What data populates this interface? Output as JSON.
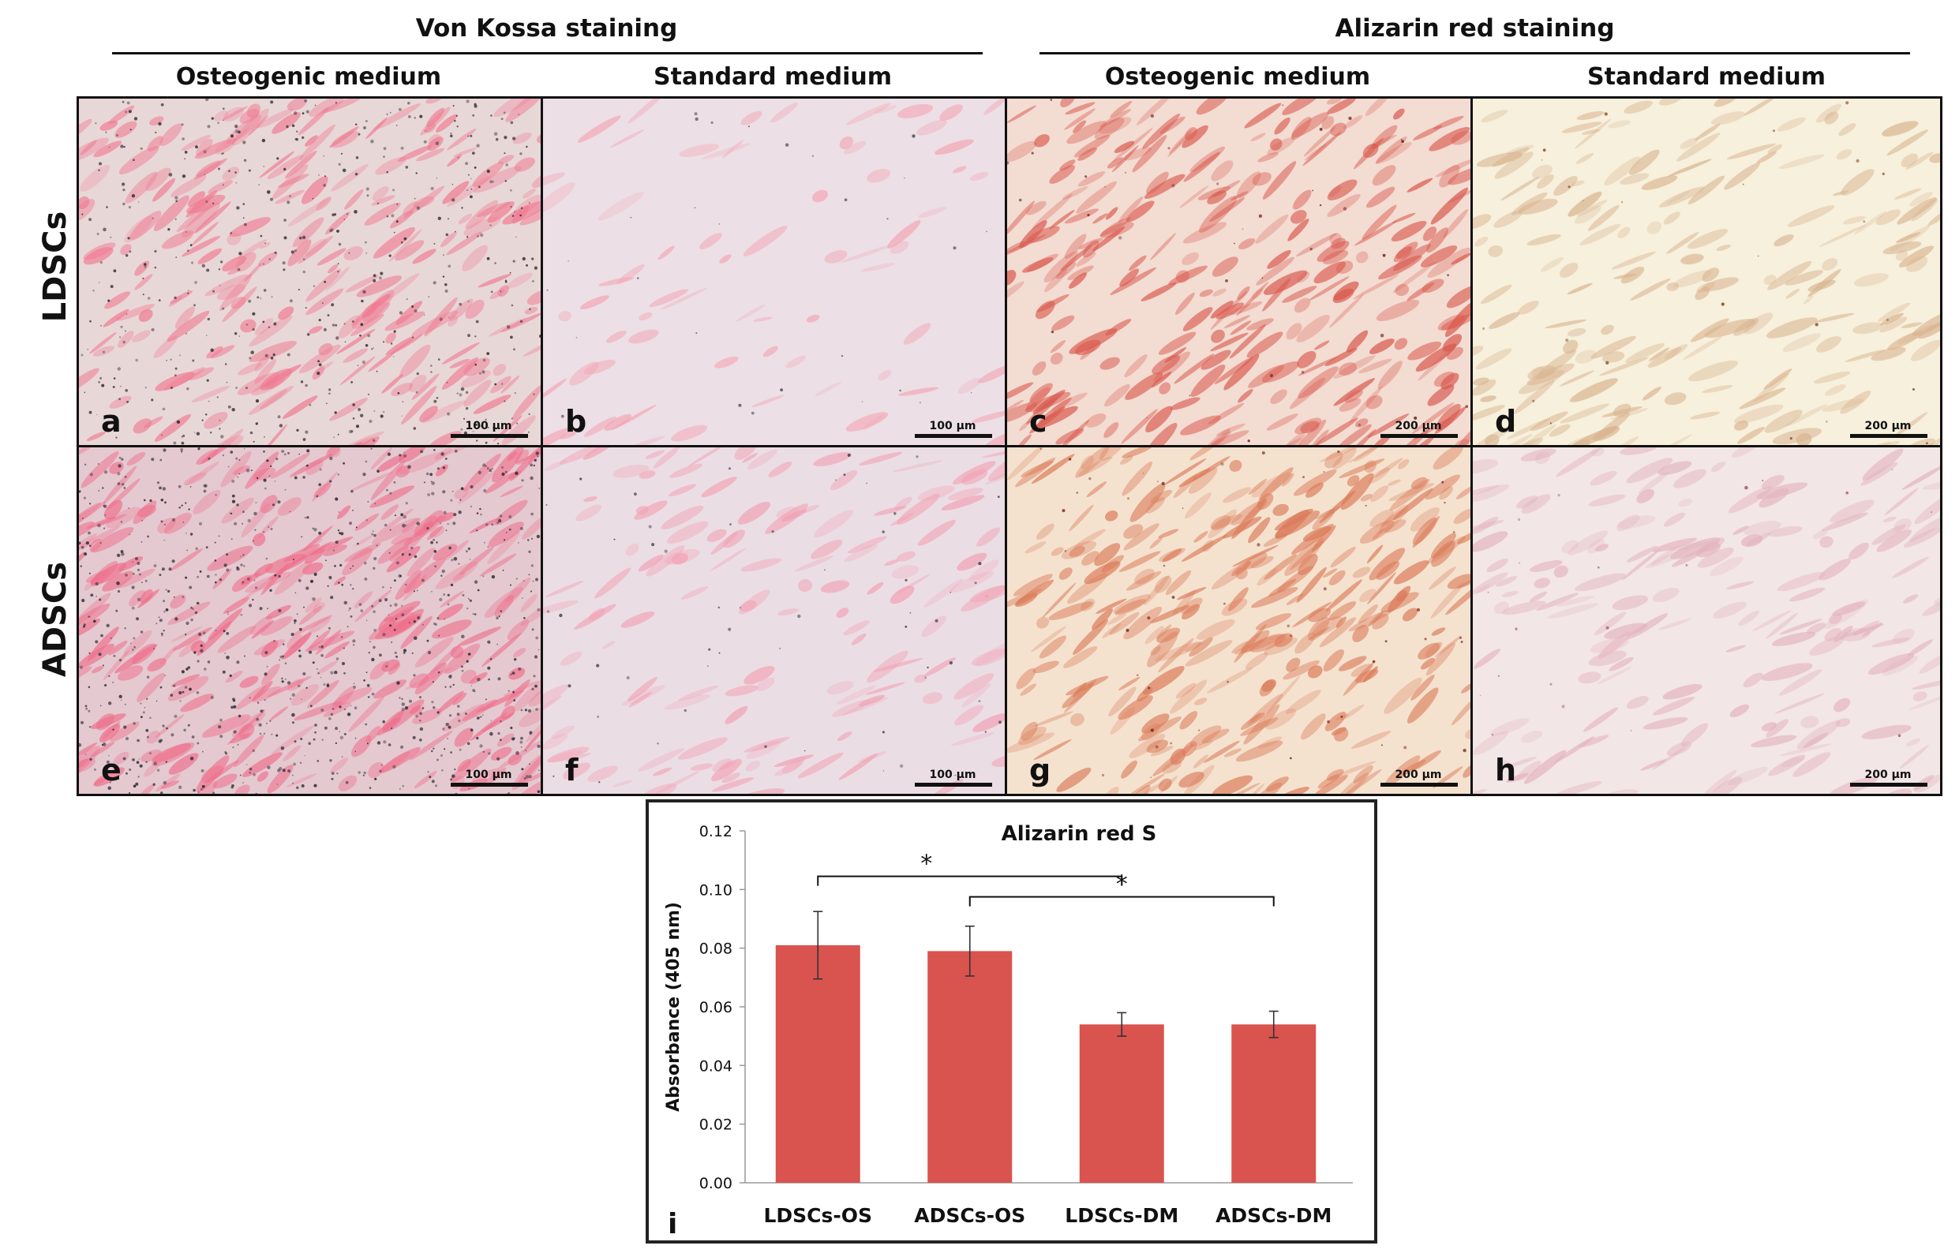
{
  "figure": {
    "groups": [
      {
        "title": "Von Kossa staining"
      },
      {
        "title": "Alizarin red staining"
      }
    ],
    "columns": [
      "Osteogenic medium",
      "Standard medium",
      "Osteogenic medium",
      "Standard medium"
    ],
    "rows": [
      "LDSCs",
      "ADSCs"
    ],
    "panels": [
      {
        "letter": "a",
        "scale": "100 μm",
        "base": "#e8d7d7",
        "cell": "#f07a92",
        "dot": "#3a2f33",
        "dots": 520,
        "cells": 260
      },
      {
        "letter": "b",
        "scale": "100 μm",
        "base": "#ecdfe6",
        "cell": "#f3a5b4",
        "dot": "#555555",
        "dots": 30,
        "cells": 70
      },
      {
        "letter": "c",
        "scale": "200 μm",
        "base": "#f3dcd2",
        "cell": "#d9574c",
        "dot": "#6b2b22",
        "dots": 40,
        "cells": 300
      },
      {
        "letter": "d",
        "scale": "200 μm",
        "base": "#f6f0dc",
        "cell": "#d9b38f",
        "dot": "#8a4a20",
        "dots": 25,
        "cells": 200
      },
      {
        "letter": "e",
        "scale": "100 μm",
        "base": "#e4c9d0",
        "cell": "#ef6f8c",
        "dot": "#2d2a33",
        "dots": 900,
        "cells": 320
      },
      {
        "letter": "f",
        "scale": "100 μm",
        "base": "#ebdde4",
        "cell": "#f2a0b3",
        "dot": "#444444",
        "dots": 60,
        "cells": 150
      },
      {
        "letter": "g",
        "scale": "200 μm",
        "base": "#f4e2cf",
        "cell": "#db7a58",
        "dot": "#7a2c1f",
        "dots": 50,
        "cells": 320
      },
      {
        "letter": "h",
        "scale": "200 μm",
        "base": "#f2e6e6",
        "cell": "#e3b3bd",
        "dot": "#a0606a",
        "dots": 20,
        "cells": 180
      }
    ],
    "chart_letter": "i"
  },
  "chart_data": {
    "type": "bar",
    "title": "Alizarin red S",
    "ylabel": "Absorbance (405 nm)",
    "xlabel": "",
    "categories": [
      "LDSCs-OS",
      "ADSCs-OS",
      "LDSCs-DM",
      "ADSCs-DM"
    ],
    "values": [
      0.081,
      0.079,
      0.054,
      0.054
    ],
    "errors": [
      0.0115,
      0.0085,
      0.004,
      0.0045
    ],
    "ylim": [
      0,
      0.12
    ],
    "yticks": [
      "0.00",
      "0.02",
      "0.04",
      "0.06",
      "0.08",
      "0.10",
      "0.12"
    ],
    "bar_color": "#d9534f",
    "grid": false,
    "significance": [
      {
        "from": 0,
        "to": 2,
        "label": "*",
        "level": 0.1045
      },
      {
        "from": 1,
        "to": 3,
        "label": "*",
        "level": 0.0975
      }
    ]
  }
}
